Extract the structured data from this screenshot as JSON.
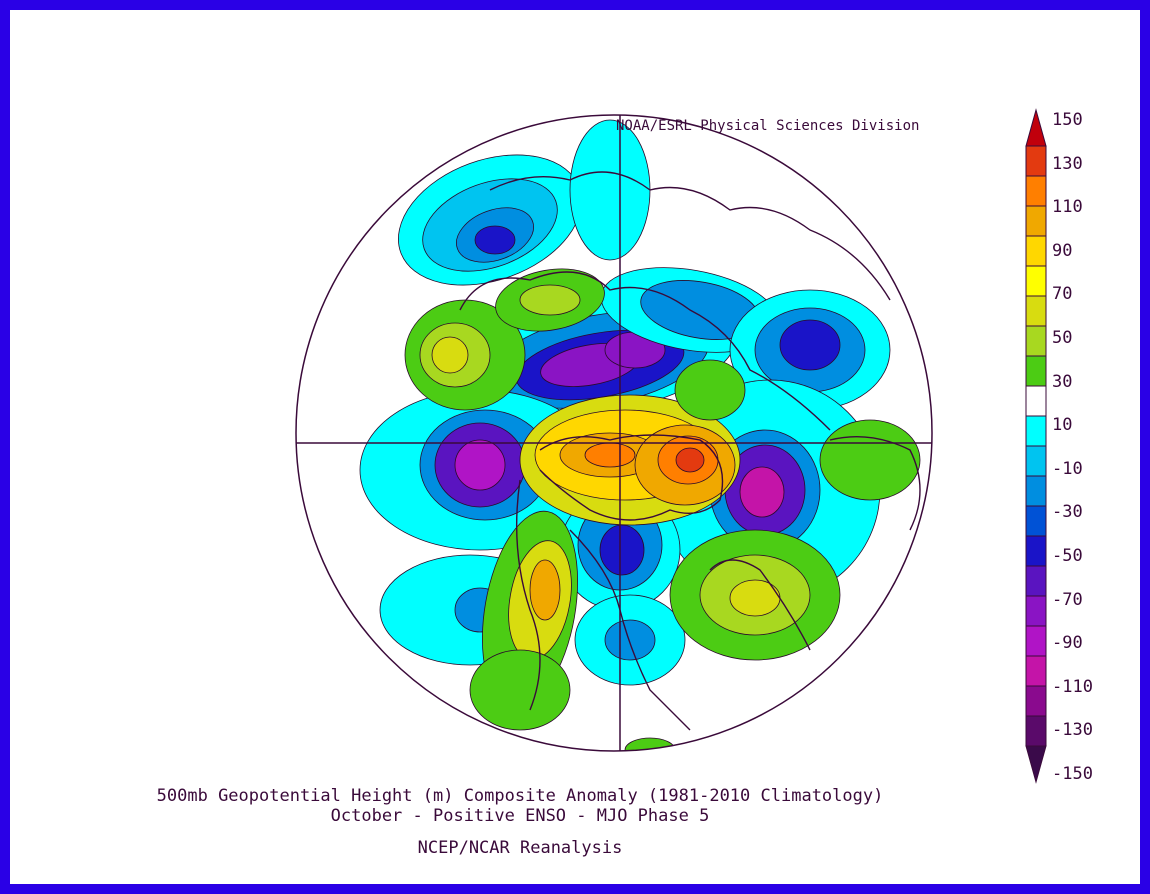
{
  "credit": "NOAA/ESRL Physical Sciences Division",
  "title_line1": "500mb Geopotential Height (m) Composite Anomaly (1981-2010 Climatology)",
  "title_line2": "October - Positive ENSO - MJO Phase 5",
  "source": "NCEP/NCAR Reanalysis",
  "colorbar": {
    "labels": [
      "150",
      "130",
      "110",
      "90",
      "70",
      "50",
      "30",
      "10",
      "-10",
      "-30",
      "-50",
      "-70",
      "-90",
      "-110",
      "-130",
      "-150"
    ],
    "colors": [
      "#c0000c",
      "#e33a10",
      "#ff7f00",
      "#f0a800",
      "#ffd700",
      "#ffff00",
      "#d8dc10",
      "#a8d820",
      "#4ccc14",
      "#ffffff",
      "#00ffff",
      "#00c4f0",
      "#008ee0",
      "#0052d6",
      "#1a14c8",
      "#5a14c0",
      "#8a14c4",
      "#b014c6",
      "#c414a8",
      "#8a0a8e",
      "#5a0a6a",
      "#3a0a4a"
    ]
  },
  "map": {
    "projection": "north-polar-stereographic",
    "features": [
      "coastlines",
      "meridian-lines",
      "filled-anomaly-contours"
    ]
  }
}
